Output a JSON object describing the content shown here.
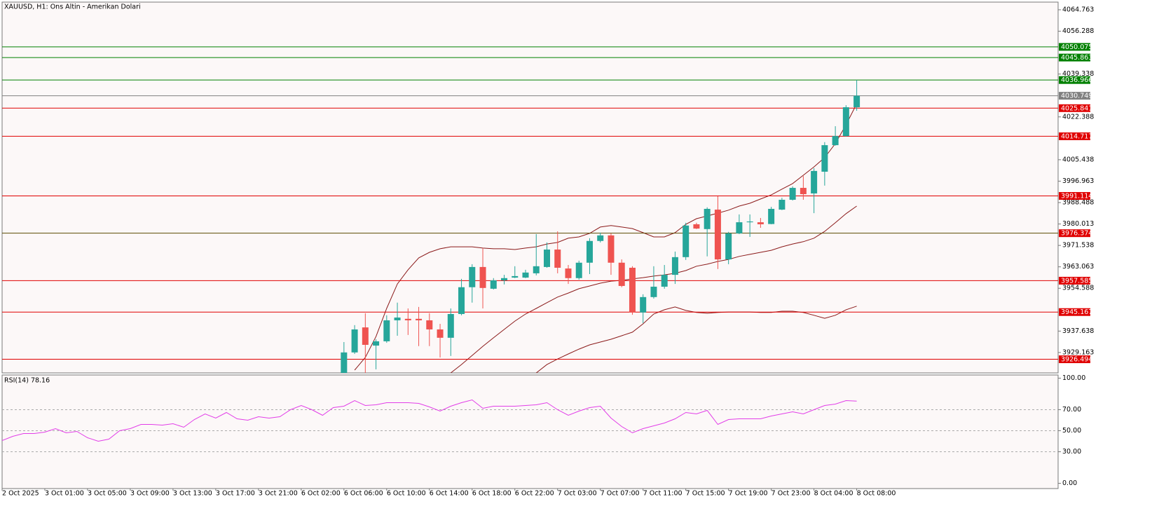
{
  "chart_data": [
    {
      "type": "candlestick",
      "title": "XAUUSD, H1:  Ons Altin - Amerikan Dolari",
      "categories": [
        "2 Oct 2025",
        null,
        null,
        null,
        "3 Oct 01:00",
        null,
        null,
        null,
        "3 Oct 05:00",
        null,
        null,
        null,
        "3 Oct 09:00",
        null,
        null,
        null,
        "3 Oct 13:00",
        null,
        null,
        null,
        "3 Oct 17:00",
        null,
        null,
        null,
        "3 Oct 21:00",
        null,
        null,
        null,
        "6 Oct 02:00",
        null,
        null,
        null,
        "6 Oct 06:00",
        null,
        null,
        null,
        "6 Oct 10:00",
        null,
        null,
        null,
        "6 Oct 14:00",
        null,
        null,
        null,
        "6 Oct 18:00",
        null,
        null,
        null,
        "6 Oct 22:00",
        null,
        null,
        null,
        "7 Oct 03:00",
        null,
        null,
        null,
        "7 Oct 07:00",
        null,
        null,
        null,
        "7 Oct 11:00",
        null,
        null,
        null,
        "7 Oct 15:00",
        null,
        null,
        null,
        "7 Oct 19:00",
        null,
        null,
        null,
        "7 Oct 23:00",
        null,
        null,
        null,
        "8 Oct 04:00",
        null,
        null,
        null,
        "8 Oct 08:00"
      ],
      "open": [
        null,
        null,
        null,
        null,
        null,
        null,
        null,
        null,
        null,
        null,
        null,
        null,
        null,
        null,
        null,
        null,
        null,
        null,
        null,
        null,
        null,
        null,
        null,
        null,
        null,
        null,
        null,
        null,
        null,
        null,
        null,
        null,
        3917.5,
        3929.2,
        3939.1,
        3931.9,
        3933.6,
        3941.9,
        3942.5,
        3942.5,
        3941.9,
        3938.3,
        3935.0,
        3944.4,
        3955.0,
        3963.0,
        3954.4,
        3957.7,
        3958.8,
        3958.8,
        3960.5,
        3963.0,
        3969.9,
        3962.4,
        3958.6,
        3964.7,
        3973.3,
        3975.5,
        3964.7,
        3962.7,
        3945.0,
        3951.1,
        3955.2,
        3959.9,
        3966.9,
        3979.9,
        3978.0,
        3985.7,
        3966.0,
        3976.3,
        3980.7,
        3980.7,
        3980.0,
        3985.7,
        3989.6,
        3994.3,
        3992.1,
        4000.7,
        4011.2,
        4014.8,
        4026.2
      ],
      "high": [
        null,
        null,
        null,
        null,
        null,
        null,
        null,
        null,
        null,
        null,
        null,
        null,
        null,
        null,
        null,
        null,
        null,
        null,
        null,
        null,
        null,
        null,
        null,
        null,
        null,
        null,
        null,
        null,
        null,
        null,
        null,
        null,
        3933.3,
        3940.0,
        3944.7,
        3934.4,
        3943.9,
        3948.9,
        3946.6,
        3947.2,
        3944.7,
        3940.5,
        3946.6,
        3958.3,
        3964.1,
        3970.5,
        3958.6,
        3959.9,
        3963.3,
        3961.9,
        3976.0,
        3972.7,
        3977.1,
        3963.8,
        3965.5,
        3974.4,
        3976.6,
        3976.3,
        3966.0,
        3963.3,
        3952.2,
        3963.3,
        3963.8,
        3969.1,
        3980.5,
        3980.5,
        3986.6,
        3991.0,
        3976.9,
        3983.8,
        3983.8,
        3982.4,
        3986.8,
        3990.4,
        3994.9,
        3999.0,
        4002.1,
        4012.4,
        4018.7,
        4027.0,
        4037.0
      ],
      "low": [
        null,
        null,
        null,
        null,
        null,
        null,
        null,
        null,
        null,
        null,
        null,
        null,
        null,
        null,
        null,
        null,
        null,
        null,
        null,
        null,
        null,
        null,
        null,
        null,
        null,
        null,
        null,
        null,
        null,
        null,
        null,
        null,
        3913.4,
        3928.6,
        3921.1,
        3922.5,
        3933.0,
        3935.8,
        3936.1,
        3931.7,
        3931.7,
        3927.2,
        3927.8,
        3943.9,
        3948.9,
        3946.6,
        3954.1,
        3956.1,
        3958.6,
        3958.6,
        3959.7,
        3962.7,
        3960.5,
        3956.3,
        3958.0,
        3960.2,
        3972.7,
        3959.9,
        3955.0,
        3944.1,
        3940.8,
        3950.5,
        3954.4,
        3956.3,
        3965.8,
        3978.0,
        3967.2,
        3962.2,
        3964.1,
        3976.0,
        3974.9,
        3978.5,
        3979.9,
        3985.5,
        3989.3,
        3989.6,
        3984.3,
        3995.2,
        4011.0,
        4014.6,
        4024.8
      ],
      "close": [
        null,
        null,
        null,
        null,
        null,
        null,
        null,
        null,
        null,
        null,
        null,
        null,
        null,
        null,
        null,
        null,
        null,
        null,
        null,
        null,
        null,
        null,
        null,
        null,
        null,
        null,
        null,
        null,
        null,
        null,
        null,
        null,
        3929.2,
        3938.3,
        3932.2,
        3933.6,
        3941.9,
        3943.0,
        3941.9,
        3941.9,
        3938.3,
        3935.0,
        3944.4,
        3955.0,
        3963.0,
        3954.7,
        3957.7,
        3958.6,
        3959.4,
        3960.8,
        3963.3,
        3969.9,
        3962.7,
        3958.6,
        3964.7,
        3973.3,
        3975.5,
        3964.7,
        3955.5,
        3945.0,
        3951.1,
        3955.2,
        3959.9,
        3966.9,
        3979.4,
        3978.2,
        3986.0,
        3966.0,
        3976.3,
        3980.7,
        3981.0,
        3979.9,
        3986.0,
        3989.6,
        3994.3,
        3991.8,
        4001.0,
        4011.2,
        4014.8,
        4026.2,
        4030.749
      ],
      "up_color": "#26a69a",
      "down_color": "#ef5350",
      "bands": {
        "color": "#8b1a1a",
        "upper": [
          null,
          null,
          null,
          null,
          null,
          null,
          null,
          null,
          null,
          null,
          null,
          null,
          null,
          null,
          null,
          null,
          null,
          null,
          null,
          null,
          null,
          null,
          null,
          null,
          null,
          null,
          null,
          null,
          null,
          null,
          null,
          null,
          null,
          3922.2,
          3927.2,
          3935.5,
          3946.6,
          3956.3,
          3961.9,
          3966.6,
          3968.8,
          3970.2,
          3971.0,
          3971.0,
          3971.0,
          3970.5,
          3970.2,
          3970.2,
          3969.9,
          3970.5,
          3971.0,
          3972.1,
          3972.7,
          3974.4,
          3974.9,
          3976.3,
          3978.8,
          3979.4,
          3978.8,
          3978.2,
          3976.6,
          3974.9,
          3974.9,
          3976.6,
          3979.9,
          3982.1,
          3983.2,
          3984.3,
          3985.5,
          3987.1,
          3988.2,
          3989.9,
          3991.5,
          3993.8,
          3996.0,
          3999.3,
          4002.6,
          4006.3,
          4011.8,
          4019.3,
          4027.6
        ],
        "middle": [
          null,
          null,
          null,
          null,
          null,
          null,
          null,
          null,
          null,
          null,
          null,
          null,
          null,
          null,
          null,
          null,
          null,
          null,
          null,
          null,
          null,
          null,
          null,
          null,
          null,
          null,
          null,
          null,
          null,
          null,
          null,
          null,
          null,
          null,
          null,
          null,
          null,
          null,
          null,
          null,
          null,
          null,
          3921.1,
          3924.4,
          3928.0,
          3931.6,
          3935.0,
          3938.3,
          3941.6,
          3944.4,
          3946.6,
          3948.9,
          3951.1,
          3952.7,
          3954.4,
          3955.5,
          3956.6,
          3957.4,
          3957.7,
          3958.3,
          3958.8,
          3959.4,
          3959.9,
          3960.5,
          3961.6,
          3963.3,
          3964.1,
          3965.2,
          3966.0,
          3967.2,
          3968.0,
          3968.8,
          3969.6,
          3971.0,
          3972.1,
          3973.0,
          3974.4,
          3977.1,
          3980.5,
          3984.1,
          3987.1
        ],
        "lower": [
          null,
          null,
          null,
          null,
          null,
          null,
          null,
          null,
          null,
          null,
          null,
          null,
          null,
          null,
          null,
          null,
          null,
          null,
          null,
          null,
          null,
          null,
          null,
          null,
          null,
          null,
          null,
          null,
          null,
          null,
          null,
          null,
          null,
          null,
          null,
          null,
          null,
          null,
          null,
          null,
          null,
          null,
          null,
          null,
          null,
          null,
          null,
          null,
          null,
          null,
          3921.1,
          3924.4,
          3926.6,
          3928.6,
          3930.5,
          3932.2,
          3933.3,
          3934.4,
          3935.8,
          3937.2,
          3940.5,
          3944.4,
          3946.1,
          3947.2,
          3945.8,
          3945.0,
          3944.7,
          3945.0,
          3945.2,
          3945.2,
          3945.2,
          3945.0,
          3945.0,
          3945.5,
          3945.5,
          3945.0,
          3943.9,
          3942.7,
          3943.9,
          3946.1,
          3947.5
        ]
      },
      "levels": [
        {
          "value": 4050.075,
          "color": "#008000"
        },
        {
          "value": 4045.863,
          "color": "#008000"
        },
        {
          "value": 4036.966,
          "color": "#008000"
        },
        {
          "value": 4030.749,
          "color": "#808080"
        },
        {
          "value": 4025.841,
          "color": "#e00000"
        },
        {
          "value": 4014.717,
          "color": "#e00000"
        },
        {
          "value": 3991.114,
          "color": "#e00000"
        },
        {
          "value": 3976.374,
          "color": "#e00000",
          "line_color": "#5a4a00"
        },
        {
          "value": 3957.585,
          "color": "#e00000"
        },
        {
          "value": 3945.167,
          "color": "#e00000"
        },
        {
          "value": 3926.494,
          "color": "#e00000"
        }
      ],
      "ylim": [
        3921.1,
        4067.8
      ],
      "yticks": [
        4064.763,
        4056.288,
        4039.338,
        4022.388,
        4005.438,
        3996.963,
        3988.488,
        3980.013,
        3971.538,
        3963.063,
        3954.588,
        3937.638,
        3929.163
      ]
    },
    {
      "type": "line",
      "label": "RSI(14) 78.16",
      "color": "#e23ee8",
      "values": [
        40.7,
        44.7,
        47.3,
        47.3,
        48.7,
        52.0,
        48.0,
        49.3,
        43.3,
        40.0,
        42.0,
        50.0,
        52.0,
        56.0,
        56.0,
        55.3,
        56.7,
        53.3,
        60.7,
        66.0,
        62.0,
        67.3,
        61.3,
        60.0,
        63.3,
        62.0,
        63.3,
        70.0,
        74.0,
        70.0,
        64.7,
        72.0,
        73.3,
        78.7,
        74.0,
        74.7,
        76.7,
        76.7,
        76.7,
        76.0,
        72.7,
        68.7,
        73.3,
        76.7,
        79.3,
        71.3,
        73.3,
        73.3,
        73.3,
        74.0,
        74.7,
        76.7,
        70.0,
        64.7,
        68.7,
        72.0,
        73.3,
        62.0,
        54.0,
        48.0,
        52.0,
        54.7,
        57.3,
        61.3,
        67.3,
        66.0,
        69.3,
        56.0,
        60.7,
        61.3,
        61.3,
        61.3,
        64.0,
        66.0,
        68.0,
        66.0,
        70.0,
        74.0,
        75.3,
        78.7,
        78.16
      ],
      "ylim": [
        -5,
        103
      ],
      "yticks": [
        {
          "value": 100,
          "label": "100.00"
        },
        {
          "value": 70,
          "label": "70.00"
        },
        {
          "value": 50,
          "label": "50.00"
        },
        {
          "value": 30,
          "label": "30.00"
        },
        {
          "value": 0,
          "label": "0.00"
        }
      ]
    }
  ]
}
